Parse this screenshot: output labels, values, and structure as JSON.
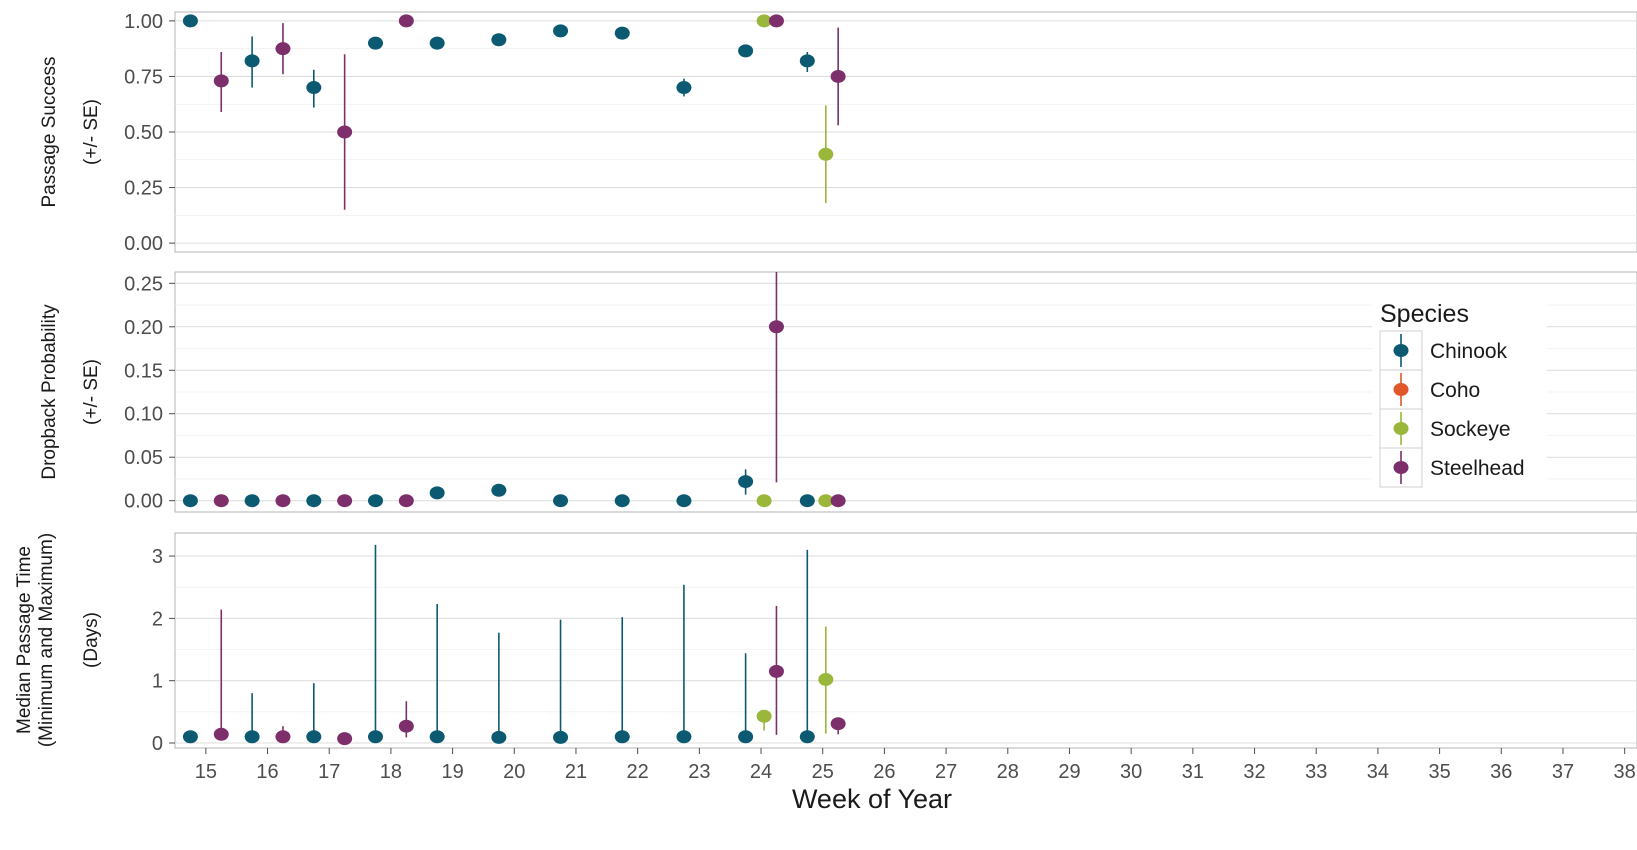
{
  "chart_data": {
    "type": "scatter",
    "x_axis": {
      "title": "Week of Year",
      "range": [
        14.5,
        38.2
      ],
      "ticks": [
        15,
        16,
        17,
        18,
        19,
        20,
        21,
        22,
        23,
        24,
        25,
        26,
        27,
        28,
        29,
        30,
        31,
        32,
        33,
        34,
        35,
        36,
        37,
        38
      ]
    },
    "legend": {
      "title": "Species",
      "placement": "right",
      "entries": [
        {
          "name": "Chinook",
          "color": "#0b5a72"
        },
        {
          "name": "Coho",
          "color": "#e0582a"
        },
        {
          "name": "Sockeye",
          "color": "#9ab73b"
        },
        {
          "name": "Steelhead",
          "color": "#7c2f6a"
        }
      ]
    },
    "panels": [
      {
        "id": "passage-success",
        "ylabel_line1": "Passage Success",
        "ylabel_line2": "(+/- SE)",
        "ylim": [
          -0.04,
          1.04
        ],
        "yticks": [
          0.0,
          0.25,
          0.5,
          0.75,
          1.0
        ],
        "ytick_labels": [
          "0.00",
          "0.25",
          "0.50",
          "0.75",
          "1.00"
        ],
        "points": [
          {
            "species": "Chinook",
            "week": 14.75,
            "y": 1.0,
            "lo": 1.0,
            "hi": 1.0
          },
          {
            "species": "Steelhead",
            "week": 15.25,
            "y": 0.73,
            "lo": 0.59,
            "hi": 0.86
          },
          {
            "species": "Chinook",
            "week": 15.75,
            "y": 0.82,
            "lo": 0.7,
            "hi": 0.93
          },
          {
            "species": "Steelhead",
            "week": 16.25,
            "y": 0.875,
            "lo": 0.76,
            "hi": 0.99
          },
          {
            "species": "Chinook",
            "week": 16.75,
            "y": 0.7,
            "lo": 0.61,
            "hi": 0.78
          },
          {
            "species": "Steelhead",
            "week": 17.25,
            "y": 0.5,
            "lo": 0.15,
            "hi": 0.85
          },
          {
            "species": "Chinook",
            "week": 17.75,
            "y": 0.9,
            "lo": 0.89,
            "hi": 0.91
          },
          {
            "species": "Steelhead",
            "week": 18.25,
            "y": 1.0,
            "lo": 1.0,
            "hi": 1.0
          },
          {
            "species": "Chinook",
            "week": 18.75,
            "y": 0.9,
            "lo": 0.89,
            "hi": 0.91
          },
          {
            "species": "Chinook",
            "week": 19.75,
            "y": 0.915,
            "lo": 0.905,
            "hi": 0.925
          },
          {
            "species": "Chinook",
            "week": 20.75,
            "y": 0.955,
            "lo": 0.945,
            "hi": 0.965
          },
          {
            "species": "Chinook",
            "week": 21.75,
            "y": 0.945,
            "lo": 0.935,
            "hi": 0.955
          },
          {
            "species": "Chinook",
            "week": 22.75,
            "y": 0.7,
            "lo": 0.66,
            "hi": 0.74
          },
          {
            "species": "Chinook",
            "week": 23.75,
            "y": 0.865,
            "lo": 0.84,
            "hi": 0.89
          },
          {
            "species": "Sockeye",
            "week": 24.05,
            "y": 1.0,
            "lo": 1.0,
            "hi": 1.0
          },
          {
            "species": "Steelhead",
            "week": 24.25,
            "y": 1.0,
            "lo": 1.0,
            "hi": 1.0
          },
          {
            "species": "Chinook",
            "week": 24.75,
            "y": 0.82,
            "lo": 0.77,
            "hi": 0.86
          },
          {
            "species": "Sockeye",
            "week": 25.05,
            "y": 0.4,
            "lo": 0.18,
            "hi": 0.62
          },
          {
            "species": "Steelhead",
            "week": 25.25,
            "y": 0.75,
            "lo": 0.53,
            "hi": 0.97
          }
        ]
      },
      {
        "id": "dropback-probability",
        "ylabel_line1": "Dropback Probability",
        "ylabel_line2": "(+/- SE)",
        "ylim": [
          -0.013,
          0.263
        ],
        "yticks": [
          0.0,
          0.05,
          0.1,
          0.15,
          0.2,
          0.25
        ],
        "ytick_labels": [
          "0.00",
          "0.05",
          "0.10",
          "0.15",
          "0.20",
          "0.25"
        ],
        "points": [
          {
            "species": "Chinook",
            "week": 14.75,
            "y": 0.0,
            "lo": 0.0,
            "hi": 0.0
          },
          {
            "species": "Steelhead",
            "week": 15.25,
            "y": 0.0,
            "lo": 0.0,
            "hi": 0.0
          },
          {
            "species": "Chinook",
            "week": 15.75,
            "y": 0.0,
            "lo": 0.0,
            "hi": 0.0
          },
          {
            "species": "Steelhead",
            "week": 16.25,
            "y": 0.0,
            "lo": 0.0,
            "hi": 0.0
          },
          {
            "species": "Chinook",
            "week": 16.75,
            "y": 0.0,
            "lo": 0.0,
            "hi": 0.0
          },
          {
            "species": "Steelhead",
            "week": 17.25,
            "y": 0.0,
            "lo": 0.0,
            "hi": 0.0
          },
          {
            "species": "Chinook",
            "week": 17.75,
            "y": 0.0,
            "lo": 0.0,
            "hi": 0.0
          },
          {
            "species": "Steelhead",
            "week": 18.25,
            "y": 0.0,
            "lo": 0.0,
            "hi": 0.0
          },
          {
            "species": "Chinook",
            "week": 18.75,
            "y": 0.009,
            "lo": 0.007,
            "hi": 0.011
          },
          {
            "species": "Chinook",
            "week": 19.75,
            "y": 0.012,
            "lo": 0.009,
            "hi": 0.016
          },
          {
            "species": "Chinook",
            "week": 20.75,
            "y": 0.0,
            "lo": 0.0,
            "hi": 0.0
          },
          {
            "species": "Chinook",
            "week": 21.75,
            "y": 0.0,
            "lo": 0.0,
            "hi": 0.0
          },
          {
            "species": "Chinook",
            "week": 22.75,
            "y": 0.0,
            "lo": 0.0,
            "hi": 0.0
          },
          {
            "species": "Chinook",
            "week": 23.75,
            "y": 0.022,
            "lo": 0.007,
            "hi": 0.036
          },
          {
            "species": "Sockeye",
            "week": 24.05,
            "y": 0.0,
            "lo": 0.0,
            "hi": 0.0
          },
          {
            "species": "Steelhead",
            "week": 24.25,
            "y": 0.2,
            "lo": 0.021,
            "hi": 0.263
          },
          {
            "species": "Chinook",
            "week": 24.75,
            "y": 0.0,
            "lo": 0.0,
            "hi": 0.0
          },
          {
            "species": "Sockeye",
            "week": 25.05,
            "y": 0.0,
            "lo": 0.0,
            "hi": 0.0
          },
          {
            "species": "Steelhead",
            "week": 25.25,
            "y": 0.0,
            "lo": 0.0,
            "hi": 0.0
          }
        ]
      },
      {
        "id": "median-passage-time",
        "ylabel_line1": "Median Passage Time",
        "ylabel_line2": "(Minimum and Maximum)",
        "ylabel_line3": "(Days)",
        "ylim": [
          -0.08,
          3.37
        ],
        "yticks": [
          0,
          1,
          2,
          3
        ],
        "ytick_labels": [
          "0",
          "1",
          "2",
          "3"
        ],
        "points": [
          {
            "species": "Chinook",
            "week": 14.75,
            "y": 0.1,
            "lo": 0.08,
            "hi": 0.12
          },
          {
            "species": "Steelhead",
            "week": 15.25,
            "y": 0.14,
            "lo": 0.08,
            "hi": 2.14
          },
          {
            "species": "Chinook",
            "week": 15.75,
            "y": 0.1,
            "lo": 0.05,
            "hi": 0.8
          },
          {
            "species": "Steelhead",
            "week": 16.25,
            "y": 0.1,
            "lo": 0.05,
            "hi": 0.27
          },
          {
            "species": "Chinook",
            "week": 16.75,
            "y": 0.1,
            "lo": 0.05,
            "hi": 0.96
          },
          {
            "species": "Steelhead",
            "week": 17.25,
            "y": 0.07,
            "lo": 0.05,
            "hi": 0.09
          },
          {
            "species": "Chinook",
            "week": 17.75,
            "y": 0.1,
            "lo": 0.05,
            "hi": 3.18
          },
          {
            "species": "Steelhead",
            "week": 18.25,
            "y": 0.27,
            "lo": 0.09,
            "hi": 0.67
          },
          {
            "species": "Chinook",
            "week": 18.75,
            "y": 0.1,
            "lo": 0.05,
            "hi": 2.23
          },
          {
            "species": "Chinook",
            "week": 19.75,
            "y": 0.09,
            "lo": 0.05,
            "hi": 1.77
          },
          {
            "species": "Chinook",
            "week": 20.75,
            "y": 0.09,
            "lo": 0.05,
            "hi": 1.98
          },
          {
            "species": "Chinook",
            "week": 21.75,
            "y": 0.1,
            "lo": 0.05,
            "hi": 2.02
          },
          {
            "species": "Chinook",
            "week": 22.75,
            "y": 0.1,
            "lo": 0.05,
            "hi": 2.54
          },
          {
            "species": "Chinook",
            "week": 23.75,
            "y": 0.1,
            "lo": 0.05,
            "hi": 1.44
          },
          {
            "species": "Sockeye",
            "week": 24.05,
            "y": 0.43,
            "lo": 0.2,
            "hi": 0.5
          },
          {
            "species": "Steelhead",
            "week": 24.25,
            "y": 1.15,
            "lo": 0.13,
            "hi": 2.2
          },
          {
            "species": "Chinook",
            "week": 24.75,
            "y": 0.1,
            "lo": 0.05,
            "hi": 3.1
          },
          {
            "species": "Sockeye",
            "week": 25.05,
            "y": 1.02,
            "lo": 0.15,
            "hi": 1.87
          },
          {
            "species": "Steelhead",
            "week": 25.25,
            "y": 0.31,
            "lo": 0.14,
            "hi": 0.38
          }
        ]
      }
    ]
  }
}
